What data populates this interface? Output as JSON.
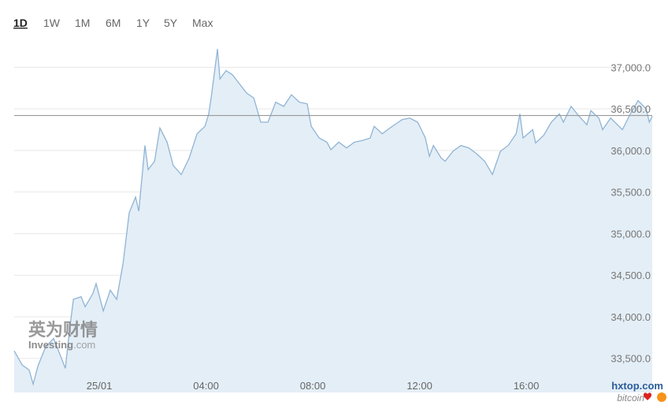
{
  "range_buttons": {
    "items": [
      "1D",
      "1W",
      "1M",
      "6M",
      "1Y",
      "5Y",
      "Max"
    ],
    "active": 0
  },
  "watermarks": {
    "cn": "英为财情",
    "investing": "Investing",
    "investing_suffix": ".com",
    "site": "hxtop.com",
    "site2": "bitcoin"
  },
  "chart_data": {
    "type": "area",
    "x": [
      -3.19,
      -2.89,
      -2.63,
      -2.48,
      -2.3,
      -2.01,
      -1.71,
      -1.42,
      -1.27,
      -1.12,
      -0.97,
      -0.68,
      -0.53,
      -0.24,
      -0.12,
      0.15,
      0.41,
      0.65,
      0.89,
      1.12,
      1.36,
      1.48,
      1.71,
      1.83,
      2.07,
      2.27,
      2.54,
      2.77,
      3.07,
      3.37,
      3.66,
      3.96,
      4.1,
      4.19,
      4.43,
      4.52,
      4.75,
      4.99,
      5.23,
      5.52,
      5.79,
      6.05,
      6.32,
      6.61,
      6.91,
      7.2,
      7.5,
      7.79,
      7.94,
      8.24,
      8.53,
      8.68,
      8.97,
      9.27,
      9.56,
      9.86,
      10.15,
      10.3,
      10.6,
      10.89,
      11.34,
      11.63,
      11.93,
      12.22,
      12.37,
      12.52,
      12.81,
      12.96,
      13.25,
      13.55,
      13.85,
      14.14,
      14.44,
      14.73,
      15.03,
      15.32,
      15.62,
      15.76,
      15.88,
      16.24,
      16.35,
      16.65,
      16.94,
      17.24,
      17.39,
      17.68,
      17.98,
      18.27,
      18.42,
      18.72,
      18.86,
      19.16,
      19.6,
      19.9,
      20.19,
      20.49,
      20.61,
      20.72
    ],
    "values": [
      33590,
      33420,
      33360,
      33190,
      33410,
      33640,
      33740,
      33500,
      33380,
      33830,
      34210,
      34240,
      34120,
      34280,
      34400,
      34070,
      34320,
      34210,
      34640,
      35250,
      35440,
      35270,
      36060,
      35770,
      35870,
      36270,
      36100,
      35820,
      35710,
      35910,
      36200,
      36290,
      36440,
      36630,
      37220,
      36860,
      36960,
      36910,
      36810,
      36690,
      36630,
      36340,
      36340,
      36580,
      36530,
      36670,
      36580,
      36560,
      36290,
      36150,
      36100,
      36010,
      36100,
      36030,
      36100,
      36120,
      36150,
      36290,
      36200,
      36270,
      36370,
      36390,
      36340,
      36150,
      35930,
      36060,
      35910,
      35870,
      35990,
      36060,
      36030,
      35960,
      35870,
      35710,
      35990,
      36060,
      36200,
      36440,
      36150,
      36250,
      36090,
      36180,
      36340,
      36440,
      36340,
      36530,
      36410,
      36310,
      36480,
      36390,
      36250,
      36390,
      36250,
      36440,
      36600,
      36500,
      36340,
      36410
    ],
    "color": "#8fb4d6",
    "fill": "#e4eef6",
    "xlim": [
      -3.19,
      20.72
    ],
    "ylim": [
      33090,
      37430
    ],
    "xticks": [
      {
        "value": 0,
        "label": "25/01"
      },
      {
        "value": 4,
        "label": "04:00"
      },
      {
        "value": 8,
        "label": "08:00"
      },
      {
        "value": 12,
        "label": "12:00"
      },
      {
        "value": 16,
        "label": "16:00"
      }
    ],
    "yticks": [
      {
        "value": 33500,
        "label": "33,500.0"
      },
      {
        "value": 34000,
        "label": "34,000.0"
      },
      {
        "value": 34500,
        "label": "34,500.0"
      },
      {
        "value": 35000,
        "label": "35,000.0"
      },
      {
        "value": 35500,
        "label": "35,500.0"
      },
      {
        "value": 36000,
        "label": "36,000.0"
      },
      {
        "value": 36500,
        "label": "36,500.0"
      },
      {
        "value": 37000,
        "label": "37,000.0"
      }
    ],
    "reference_line": 36420,
    "grid": true
  }
}
